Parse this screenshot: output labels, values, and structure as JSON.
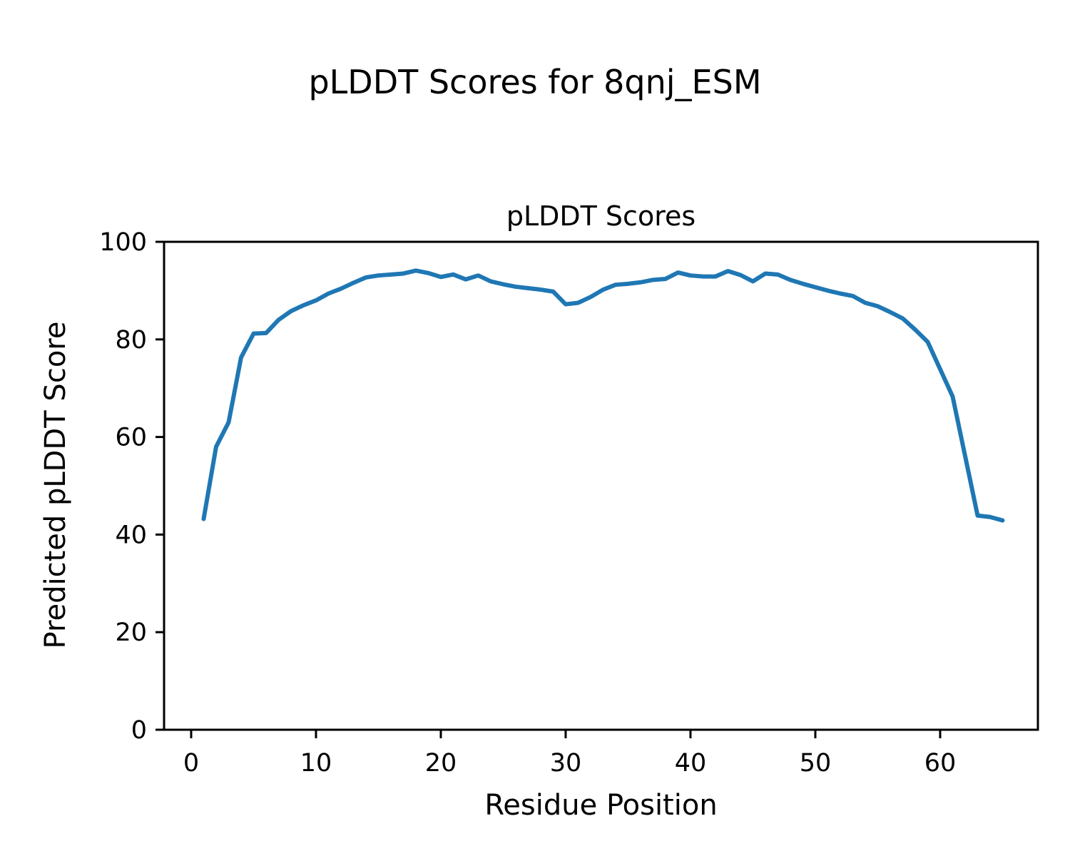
{
  "figure": {
    "suptitle": "pLDDT Scores for 8qnj_ESM"
  },
  "chart_data": {
    "type": "line",
    "title": "pLDDT Scores",
    "xlabel": "Residue Position",
    "ylabel": "Predicted pLDDT Score",
    "xlim": [
      -2.17,
      67.83
    ],
    "ylim": [
      0,
      100
    ],
    "xticks": [
      0,
      10,
      20,
      30,
      40,
      50,
      60
    ],
    "yticks": [
      0,
      20,
      40,
      60,
      80,
      100
    ],
    "grid": false,
    "line_color": "#1f77b4",
    "x": [
      1,
      2,
      3,
      4,
      5,
      6,
      7,
      8,
      9,
      10,
      11,
      12,
      13,
      14,
      15,
      16,
      17,
      18,
      19,
      20,
      21,
      22,
      23,
      24,
      25,
      26,
      27,
      28,
      29,
      30,
      31,
      32,
      33,
      34,
      35,
      36,
      37,
      38,
      39,
      40,
      41,
      42,
      43,
      44,
      45,
      46,
      47,
      48,
      49,
      50,
      51,
      52,
      53,
      54,
      55,
      56,
      57,
      58,
      59,
      60,
      61,
      62,
      63,
      64,
      65
    ],
    "series": [
      {
        "name": "pLDDT",
        "color": "#1f77b4",
        "values": [
          43.2,
          58.0,
          63.0,
          76.3,
          81.2,
          81.3,
          84.0,
          85.8,
          87.0,
          88.0,
          89.4,
          90.4,
          91.6,
          92.7,
          93.1,
          93.3,
          93.5,
          94.1,
          93.6,
          92.8,
          93.3,
          92.3,
          93.1,
          91.9,
          91.3,
          90.8,
          90.5,
          90.2,
          89.8,
          87.2,
          87.5,
          88.7,
          90.2,
          91.2,
          91.4,
          91.7,
          92.2,
          92.4,
          93.7,
          93.1,
          92.9,
          92.9,
          94.0,
          93.2,
          91.9,
          93.5,
          93.3,
          92.2,
          91.4,
          90.7,
          90.0,
          89.4,
          88.9,
          87.5,
          86.8,
          85.6,
          84.3,
          82.0,
          79.5,
          73.9,
          68.3,
          56.1,
          43.9,
          43.6,
          42.9
        ]
      }
    ]
  }
}
